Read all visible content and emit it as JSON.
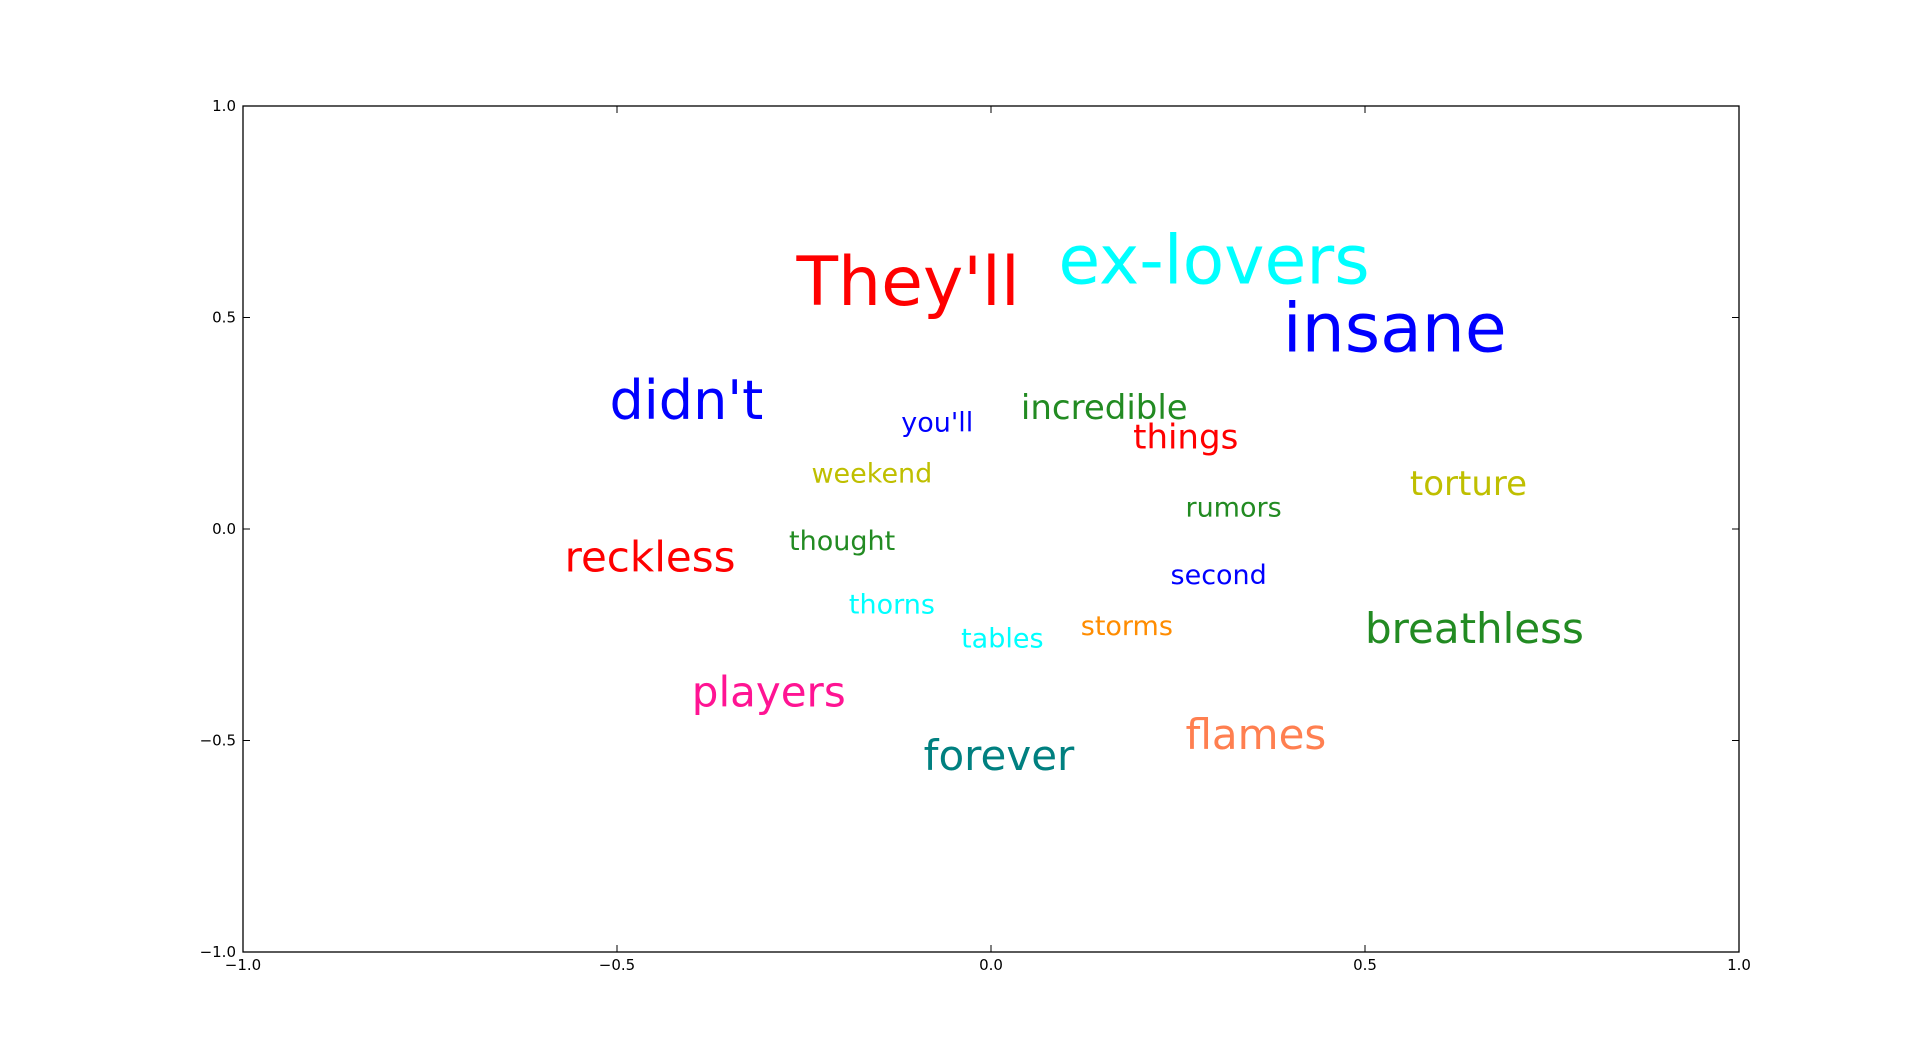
{
  "chart_data": {
    "type": "scatter",
    "title": "",
    "xlabel": "",
    "ylabel": "",
    "xlim": [
      -1.0,
      1.0
    ],
    "ylim": [
      -1.0,
      1.0
    ],
    "grid": false,
    "x_ticks": [
      -1.0,
      -0.5,
      0.0,
      0.5,
      1.0
    ],
    "y_ticks": [
      -1.0,
      -0.5,
      0.0,
      0.5,
      1.0
    ],
    "x_tick_labels": [
      "−1.0",
      "−0.5",
      "0.0",
      "0.5",
      "1.0"
    ],
    "y_tick_labels": [
      "−1.0",
      "−0.5",
      "0.0",
      "0.5",
      "1.0"
    ],
    "points": [
      {
        "label": "They'll",
        "x": -0.26,
        "y": 0.53,
        "weight": 5,
        "color": "#ff0000"
      },
      {
        "label": "ex-lovers",
        "x": 0.09,
        "y": 0.58,
        "weight": 5,
        "color": "#00ffff"
      },
      {
        "label": "insane",
        "x": 0.39,
        "y": 0.42,
        "weight": 5,
        "color": "#0000ff"
      },
      {
        "label": "didn't",
        "x": -0.51,
        "y": 0.26,
        "weight": 4,
        "color": "#0000ff"
      },
      {
        "label": "you'll",
        "x": -0.12,
        "y": 0.23,
        "weight": 1,
        "color": "#0000ff"
      },
      {
        "label": "incredible",
        "x": 0.04,
        "y": 0.26,
        "weight": 2,
        "color": "#228b22"
      },
      {
        "label": "things",
        "x": 0.19,
        "y": 0.19,
        "weight": 2,
        "color": "#ff0000"
      },
      {
        "label": "weekend",
        "x": -0.24,
        "y": 0.11,
        "weight": 1,
        "color": "#bfbf00"
      },
      {
        "label": "torture",
        "x": 0.56,
        "y": 0.08,
        "weight": 2,
        "color": "#bfbf00"
      },
      {
        "label": "rumors",
        "x": 0.26,
        "y": 0.03,
        "weight": 1,
        "color": "#228b22"
      },
      {
        "label": "thought",
        "x": -0.27,
        "y": -0.05,
        "weight": 1,
        "color": "#228b22"
      },
      {
        "label": "reckless",
        "x": -0.57,
        "y": -0.1,
        "weight": 3,
        "color": "#ff0000"
      },
      {
        "label": "second",
        "x": 0.24,
        "y": -0.13,
        "weight": 1,
        "color": "#0000ff"
      },
      {
        "label": "thorns",
        "x": -0.19,
        "y": -0.2,
        "weight": 1,
        "color": "#00ffff"
      },
      {
        "label": "storms",
        "x": 0.12,
        "y": -0.25,
        "weight": 1,
        "color": "#ff8c00"
      },
      {
        "label": "tables",
        "x": -0.04,
        "y": -0.28,
        "weight": 1,
        "color": "#00ffff"
      },
      {
        "label": "breathless",
        "x": 0.5,
        "y": -0.27,
        "weight": 3,
        "color": "#228b22"
      },
      {
        "label": "players",
        "x": -0.4,
        "y": -0.42,
        "weight": 3,
        "color": "#ff1493"
      },
      {
        "label": "flames",
        "x": 0.26,
        "y": -0.52,
        "weight": 3,
        "color": "#ff7f50"
      },
      {
        "label": "forever",
        "x": -0.09,
        "y": -0.57,
        "weight": 3,
        "color": "#008080"
      }
    ]
  }
}
